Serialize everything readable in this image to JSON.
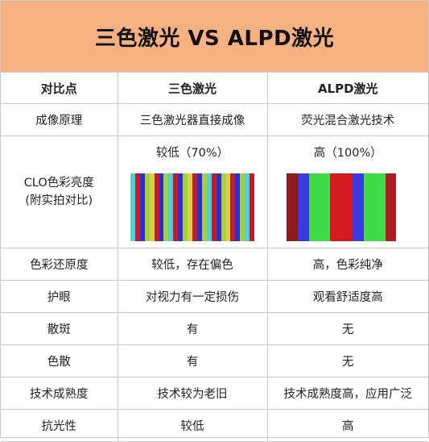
{
  "title": "三色激光 VS ALPD激光",
  "header": {
    "col1": "对比点",
    "col2": "三色激光",
    "col3": "ALPD激光"
  },
  "rows": [
    {
      "label": "成像原理",
      "a": "三色激光器直接成像",
      "b": "荧光混合激光技术"
    },
    {
      "label": "CLO色彩亮度\n(附实拍对比)",
      "a": "较低（70%）",
      "b": "高（100%）"
    },
    {
      "label": "色彩还原度",
      "a": "较低，存在偏色",
      "b": "高，色彩纯净"
    },
    {
      "label": "护眼",
      "a": "对视力有一定损伤",
      "b": "观看舒适度高"
    },
    {
      "label": "散斑",
      "a": "有",
      "b": "无"
    },
    {
      "label": "色散",
      "a": "有",
      "b": "无"
    },
    {
      "label": "技术成熟度",
      "a": "技术较为老旧",
      "b": "技术成熟度高，应用广泛"
    },
    {
      "label": "抗光性",
      "a": "较低",
      "b": "高"
    }
  ],
  "colors": {
    "title_bg": "#f6b183",
    "stripe_a": [
      "#4fd0d8",
      "#c11b2e",
      "#2b2fd0",
      "#a6cf3a",
      "#d6d24a",
      "#c11b2e",
      "#2b2fd0",
      "#a6cf3a",
      "#4fd0d8",
      "#c11b2e",
      "#2b2fd0",
      "#a6cf3a",
      "#d6d24a",
      "#c11b2e",
      "#2b2fd0",
      "#a6cf3a",
      "#4fd0d8",
      "#c11b2e",
      "#2b2fd0",
      "#a6cf3a",
      "#d6d24a",
      "#c11b2e",
      "#2b2fd0",
      "#a6cf3a",
      "#4fd0d8",
      "#c11b2e"
    ],
    "stripe_b": [
      "#8b1a1a",
      "#3b3ae0",
      "#3fdc48",
      "#3fdc48",
      "#d4191f",
      "#d4191f",
      "#3b3ae0",
      "#3fdc48",
      "#3fdc48",
      "#b01a22"
    ]
  }
}
